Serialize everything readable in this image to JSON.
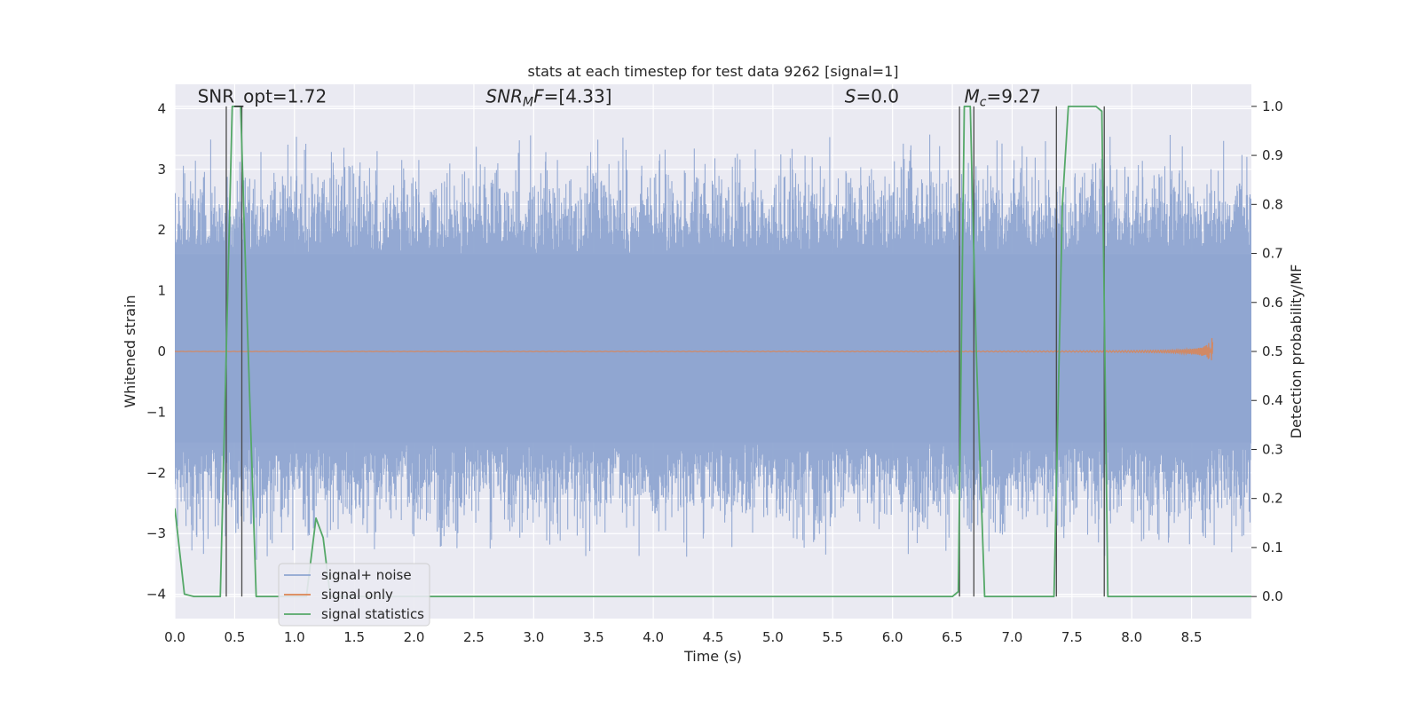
{
  "chart_data": {
    "type": "line",
    "title": "stats at each timestep for test data 9262 [signal=1]",
    "xlabel": "Time (s)",
    "ylabel_left": "Whitened strain",
    "ylabel_right": "Detection probability/MF",
    "xlim": [
      0.0,
      9.0
    ],
    "ylim_left": [
      -4.4,
      4.4
    ],
    "ylim_right": [
      -0.045,
      1.045
    ],
    "x_ticks": [
      0.0,
      0.5,
      1.0,
      1.5,
      2.0,
      2.5,
      3.0,
      3.5,
      4.0,
      4.5,
      5.0,
      5.5,
      6.0,
      6.5,
      7.0,
      7.5,
      8.0,
      8.5
    ],
    "x_tick_labels": [
      "0.0",
      "0.5",
      "1.0",
      "1.5",
      "2.0",
      "2.5",
      "3.0",
      "3.5",
      "4.0",
      "4.5",
      "5.0",
      "5.5",
      "6.0",
      "6.5",
      "7.0",
      "7.5",
      "8.0",
      "8.5"
    ],
    "y_ticks_left": [
      -4,
      -3,
      -2,
      -1,
      0,
      1,
      2,
      3,
      4
    ],
    "y_tick_labels_left": [
      "−4",
      "−3",
      "−2",
      "−1",
      "0",
      "1",
      "2",
      "3",
      "4"
    ],
    "y_ticks_right": [
      0.0,
      0.1,
      0.2,
      0.3,
      0.4,
      0.5,
      0.6,
      0.7,
      0.8,
      0.9,
      1.0
    ],
    "y_tick_labels_right": [
      "0.0",
      "0.1",
      "0.2",
      "0.3",
      "0.4",
      "0.5",
      "0.6",
      "0.7",
      "0.8",
      "0.9",
      "1.0"
    ],
    "grid": true,
    "legend_position": "lower-left",
    "annotations": [
      {
        "label": "SNR_opt=1.72",
        "x": 0.19,
        "y": 4.1
      },
      {
        "label": "SNR_MF=[4.33]",
        "x": 2.6,
        "y": 4.1
      },
      {
        "label": "S=0.0",
        "x": 5.6,
        "y": 4.1
      },
      {
        "label": "M_c=9.27",
        "x": 6.6,
        "y": 4.1
      }
    ],
    "series": [
      {
        "name": "signal+ noise",
        "axis": "left",
        "color": "#8fa5d1",
        "style": "dense-noise",
        "noise_envelope": {
          "core_upper": 1.6,
          "core_lower": -1.5,
          "peak_max": 3.6,
          "peak_min": -3.4
        }
      },
      {
        "name": "signal only",
        "axis": "left",
        "color": "#dd8452",
        "style": "chirp",
        "chirp": {
          "start_x": 0.0,
          "merger_x": 8.68,
          "max_amplitude": 0.22
        }
      },
      {
        "name": "signal statistics",
        "axis": "right",
        "color": "#55a868",
        "x": [
          0.0,
          0.08,
          0.16,
          0.38,
          0.43,
          0.48,
          0.55,
          0.6,
          0.68,
          1.1,
          1.18,
          1.24,
          1.3,
          6.5,
          6.55,
          6.6,
          6.65,
          6.7,
          6.77,
          7.35,
          7.42,
          7.47,
          7.7,
          7.75,
          7.8,
          9.0
        ],
        "y": [
          0.18,
          0.005,
          0.0,
          0.0,
          0.5,
          1.0,
          1.0,
          0.6,
          0.0,
          0.0,
          0.16,
          0.12,
          0.0,
          0.0,
          0.01,
          1.0,
          1.0,
          0.5,
          0.0,
          0.0,
          0.8,
          1.0,
          1.0,
          0.99,
          0.0,
          0.0
        ]
      }
    ],
    "vertical_markers": {
      "color": "#4a4a4a",
      "axis": "right",
      "from": 0.0,
      "to": 1.0,
      "x": [
        0.43,
        0.56,
        6.56,
        6.68,
        7.37,
        7.77
      ]
    }
  }
}
